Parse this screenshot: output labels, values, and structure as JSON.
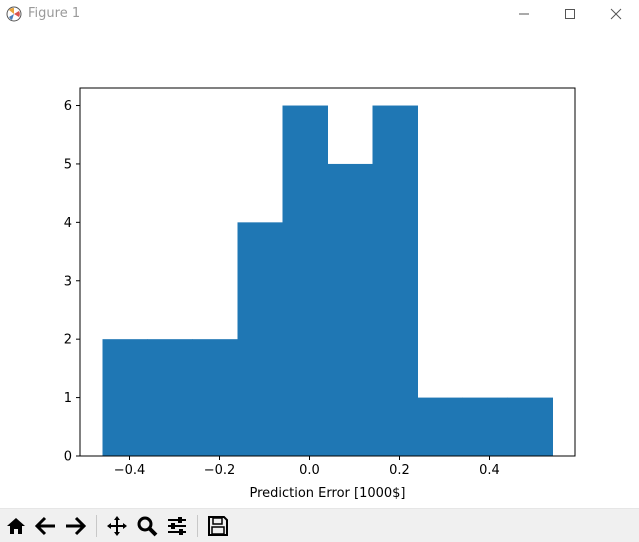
{
  "window": {
    "title": "Figure 1",
    "controls": [
      "minimize",
      "maximize",
      "close"
    ]
  },
  "toolbar": {
    "buttons": [
      "home-icon",
      "back-icon",
      "forward-icon",
      "pan-icon",
      "zoom-icon",
      "configure-subplots-icon",
      "save-icon"
    ]
  },
  "chart_data": {
    "type": "bar",
    "subtype": "histogram",
    "bin_edges": [
      -0.46,
      -0.36,
      -0.26,
      -0.16,
      -0.06,
      0.04,
      0.14,
      0.24,
      0.34,
      0.44,
      0.54
    ],
    "counts": [
      2,
      2,
      2,
      4,
      6,
      5,
      6,
      1,
      1,
      1
    ],
    "color": "#1f77b4",
    "xlabel": "Prediction Error [1000$]",
    "ylabel": "",
    "title": "",
    "xlim": [
      -0.51,
      0.59
    ],
    "ylim": [
      0,
      6.3
    ],
    "xticks": [
      -0.4,
      -0.2,
      0.0,
      0.2,
      0.4
    ],
    "xtick_labels": [
      "−0.4",
      "−0.2",
      "0.0",
      "0.2",
      "0.4"
    ],
    "yticks": [
      0,
      1,
      2,
      3,
      4,
      5,
      6
    ],
    "ytick_labels": [
      "0",
      "1",
      "2",
      "3",
      "4",
      "5",
      "6"
    ],
    "grid": false
  }
}
